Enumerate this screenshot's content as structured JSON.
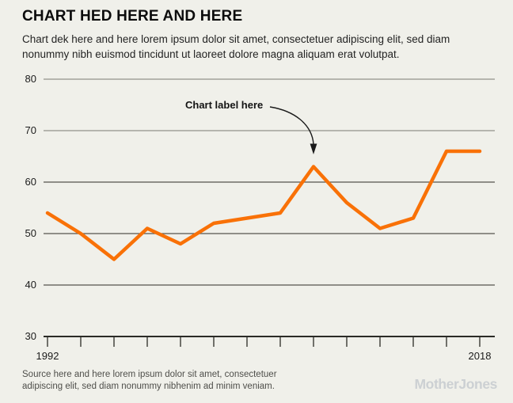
{
  "header": {
    "title": "CHART HED HERE AND HERE",
    "dek_line1": "Chart dek here and here lorem ipsum dolor sit amet, consectetuer adipiscing elit, sed diam",
    "dek_line2": "nonummy nibh euismod tincidunt ut laoreet dolore magna aliquam erat volutpat."
  },
  "chart_data": {
    "type": "line",
    "title": "CHART HED HERE AND HERE",
    "x": [
      1992,
      1994,
      1996,
      1998,
      2000,
      2002,
      2004,
      2006,
      2008,
      2010,
      2012,
      2014,
      2016,
      2018
    ],
    "values": [
      54,
      50,
      45,
      51,
      48,
      52,
      53,
      54,
      63,
      56,
      51,
      53,
      66,
      66
    ],
    "line_color": "#f97107",
    "ylim": [
      30,
      80
    ],
    "yticks": [
      80,
      70,
      60,
      50,
      40,
      30
    ],
    "ytick_labels": [
      "80",
      "70",
      "60",
      "50",
      "40",
      "30"
    ],
    "xticks": [
      1992,
      1994,
      1996,
      1998,
      2000,
      2002,
      2004,
      2006,
      2008,
      2010,
      2012,
      2014,
      2016,
      2018
    ],
    "xtick_labels": [
      "1992",
      "2018"
    ],
    "grid": "horizontal",
    "legend": "none",
    "annotation": {
      "label": "Chart label here",
      "points_to_x": 2008,
      "points_to_y": 63
    }
  },
  "footer": {
    "source_line1": "Source here and here lorem ipsum dolor sit amet, consectetuer",
    "source_line2": "adipiscing elit, sed diam nonummy nibhenim ad minim veniam.",
    "logo": "MotherJones"
  },
  "colors": {
    "background": "#f0f0ea",
    "line": "#f97107",
    "gridline_light": "#b5b5ae",
    "gridline_dark": "#55534d",
    "axis": "#2b2b26",
    "logo": "#ccd0d3"
  }
}
